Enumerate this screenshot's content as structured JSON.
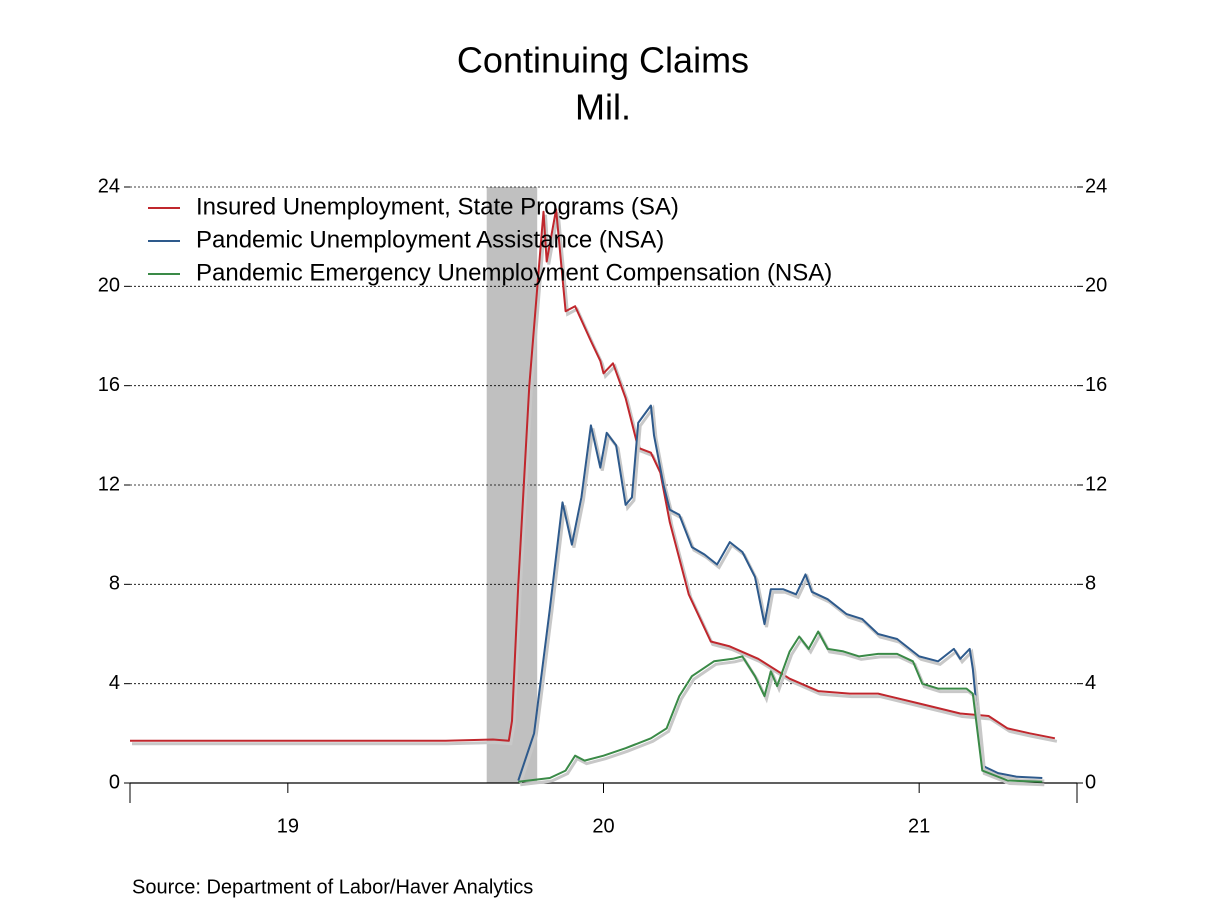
{
  "chart_data": {
    "type": "line",
    "title": "Continuing Claims",
    "subtitle": "Mil.",
    "source": "Source:  Department of Labor/Haver Analytics",
    "xlim": [
      2019,
      2022
    ],
    "xticks": [
      {
        "value": 2019.5,
        "label": "19"
      },
      {
        "value": 2020.5,
        "label": "20"
      },
      {
        "value": 2021.5,
        "label": "21"
      }
    ],
    "ylim": [
      0,
      24
    ],
    "yticks": [
      0,
      4,
      8,
      12,
      16,
      20,
      24
    ],
    "y2lim": [
      0,
      24
    ],
    "y2ticks": [
      0,
      4,
      8,
      12,
      16,
      20,
      24
    ],
    "grid": true,
    "legend": "top-left",
    "shading": [
      2020.13,
      2020.29
    ],
    "series": [
      {
        "name": "Insured Unemployment, State Programs (SA)",
        "color": "#c0272d",
        "x": [
          2019.0,
          2019.2,
          2019.4,
          2019.6,
          2019.8,
          2020.0,
          2020.15,
          2020.2,
          2020.21,
          2020.23,
          2020.265,
          2020.3,
          2020.31,
          2020.32,
          2020.35,
          2020.38,
          2020.41,
          2020.46,
          2020.49,
          2020.5,
          2020.53,
          2020.57,
          2020.61,
          2020.65,
          2020.68,
          2020.71,
          2020.77,
          2020.84,
          2020.9,
          2020.99,
          2021.09,
          2021.18,
          2021.28,
          2021.37,
          2021.5,
          2021.63,
          2021.72,
          2021.78,
          2021.85,
          2021.93
        ],
        "values": [
          1.7,
          1.7,
          1.7,
          1.7,
          1.7,
          1.7,
          1.75,
          1.7,
          2.5,
          8,
          16,
          21.5,
          23.0,
          21,
          23.1,
          19.0,
          19.2,
          17.8,
          17.0,
          16.5,
          16.9,
          15.5,
          13.5,
          13.3,
          12.5,
          10.5,
          7.6,
          5.7,
          5.5,
          5.0,
          4.2,
          3.7,
          3.6,
          3.6,
          3.2,
          2.8,
          2.7,
          2.2,
          2.0,
          1.8
        ]
      },
      {
        "name": "Pandemic Unemployment Assistance (NSA)",
        "color": "#2e5a8c",
        "x": [
          2020.23,
          2020.28,
          2020.33,
          2020.37,
          2020.4,
          2020.43,
          2020.46,
          2020.49,
          2020.51,
          2020.54,
          2020.57,
          2020.59,
          2020.61,
          2020.65,
          2020.66,
          2020.69,
          2020.71,
          2020.74,
          2020.78,
          2020.82,
          2020.86,
          2020.9,
          2020.94,
          2020.98,
          2021.01,
          2021.03,
          2021.07,
          2021.11,
          2021.14,
          2021.16,
          2021.21,
          2021.27,
          2021.32,
          2021.37,
          2021.43,
          2021.5,
          2021.56,
          2021.61,
          2021.63,
          2021.66,
          2021.67,
          2021.7,
          2021.75,
          2021.81,
          2021.89
        ],
        "values": [
          0.1,
          2,
          7,
          11.3,
          9.6,
          11.5,
          14.4,
          12.7,
          14.1,
          13.6,
          11.2,
          11.5,
          14.5,
          15.2,
          14,
          12,
          11,
          10.8,
          9.5,
          9.2,
          8.8,
          9.7,
          9.3,
          8.3,
          6.4,
          7.8,
          7.8,
          7.6,
          8.4,
          7.7,
          7.4,
          6.8,
          6.6,
          6.0,
          5.8,
          5.1,
          4.9,
          5.4,
          5.0,
          5.4,
          4.6,
          0.7,
          0.4,
          0.25,
          0.2
        ]
      },
      {
        "name": "Pandemic Emergency Unemployment Compensation (NSA)",
        "color": "#3a8a47",
        "x": [
          2020.23,
          2020.33,
          2020.38,
          2020.41,
          2020.44,
          2020.5,
          2020.57,
          2020.65,
          2020.7,
          2020.74,
          2020.78,
          2020.85,
          2020.91,
          2020.94,
          2020.98,
          2021.01,
          2021.03,
          2021.05,
          2021.09,
          2021.12,
          2021.15,
          2021.18,
          2021.21,
          2021.26,
          2021.31,
          2021.37,
          2021.43,
          2021.48,
          2021.51,
          2021.56,
          2021.65,
          2021.67,
          2021.7,
          2021.78,
          2021.89
        ],
        "values": [
          0.05,
          0.2,
          0.5,
          1.1,
          0.9,
          1.1,
          1.4,
          1.8,
          2.2,
          3.5,
          4.3,
          4.9,
          5.0,
          5.1,
          4.3,
          3.5,
          4.5,
          3.9,
          5.3,
          5.9,
          5.4,
          6.1,
          5.4,
          5.3,
          5.1,
          5.2,
          5.2,
          4.9,
          4.0,
          3.8,
          3.8,
          3.6,
          0.5,
          0.1,
          0.05
        ]
      }
    ]
  }
}
